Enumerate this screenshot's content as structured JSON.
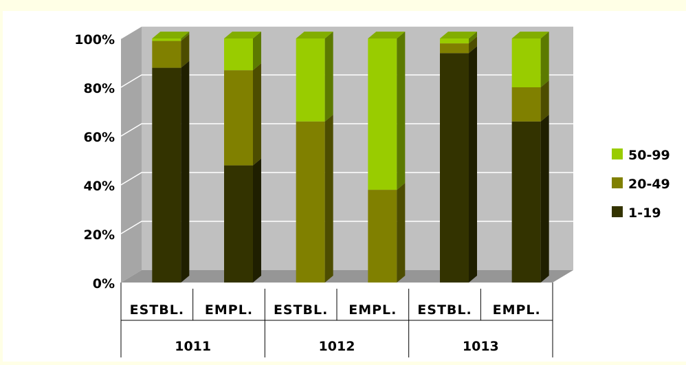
{
  "chart_data": {
    "type": "bar",
    "stacked": true,
    "three_d": true,
    "ylim": [
      0,
      100
    ],
    "y_ticks": [
      "0%",
      "20%",
      "40%",
      "60%",
      "80%",
      "100%"
    ],
    "grid": true,
    "legend_position": "right",
    "categories": [
      "ESTBL.",
      "EMPL.",
      "ESTBL.",
      "EMPL.",
      "ESTBL.",
      "EMPL."
    ],
    "groups": [
      "1011",
      "1012",
      "1013"
    ],
    "series": [
      {
        "name": "1-19",
        "color": "#333300",
        "values": [
          88,
          48,
          0,
          0,
          94,
          66
        ]
      },
      {
        "name": "20-49",
        "color": "#808000",
        "values": [
          11,
          39,
          66,
          38,
          4,
          14
        ]
      },
      {
        "name": "50-99",
        "color": "#99cc00",
        "values": [
          1,
          13,
          34,
          62,
          2,
          20
        ]
      }
    ],
    "legend_order": [
      "50-99",
      "20-49",
      "1-19"
    ],
    "colors": {
      "wall": "#c0c0c0",
      "floor": "#969696",
      "gridline": "#ffffff",
      "background": "#ffffe6"
    }
  }
}
